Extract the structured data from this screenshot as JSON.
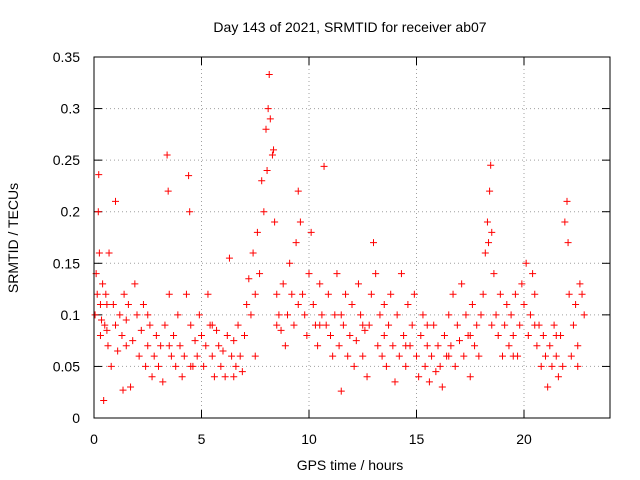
{
  "chart_data": {
    "type": "scatter",
    "title": "Day 143 of 2021, SRMTID for receiver ab07",
    "xlabel": "GPS time / hours",
    "ylabel": "SRMTID / TECUs",
    "xlim": [
      0,
      24
    ],
    "ylim": [
      0,
      0.35
    ],
    "xticks": [
      0,
      5,
      10,
      15,
      20
    ],
    "xtick_labels": [
      "0",
      "5",
      "10",
      "15",
      "20"
    ],
    "yticks": [
      0,
      0.05,
      0.1,
      0.15,
      0.2,
      0.25,
      0.3,
      0.35
    ],
    "ytick_labels": [
      "0",
      "0.05",
      "0.1",
      "0.15",
      "0.2",
      "0.25",
      "0.3",
      "0.35"
    ],
    "grid": true,
    "marker": "+",
    "series_color": "#ff0000",
    "series": [
      {
        "name": "SRMTID",
        "points": [
          [
            0.05,
            0.1
          ],
          [
            0.1,
            0.14
          ],
          [
            0.15,
            0.12
          ],
          [
            0.2,
            0.2
          ],
          [
            0.22,
            0.236
          ],
          [
            0.25,
            0.16
          ],
          [
            0.3,
            0.11
          ],
          [
            0.35,
            0.095
          ],
          [
            0.4,
            0.13
          ],
          [
            0.45,
            0.017
          ],
          [
            0.5,
            0.09
          ],
          [
            0.55,
            0.12
          ],
          [
            0.6,
            0.085
          ],
          [
            0.65,
            0.07
          ],
          [
            0.7,
            0.16
          ],
          [
            0.8,
            0.05
          ],
          [
            0.9,
            0.11
          ],
          [
            1.0,
            0.09
          ],
          [
            1.0,
            0.21
          ],
          [
            1.1,
            0.065
          ],
          [
            1.2,
            0.1
          ],
          [
            1.3,
            0.08
          ],
          [
            1.35,
            0.027
          ],
          [
            1.4,
            0.12
          ],
          [
            1.5,
            0.095
          ],
          [
            1.6,
            0.11
          ],
          [
            1.7,
            0.03
          ],
          [
            1.8,
            0.075
          ],
          [
            1.9,
            0.13
          ],
          [
            2.0,
            0.1
          ],
          [
            2.1,
            0.06
          ],
          [
            2.2,
            0.085
          ],
          [
            2.3,
            0.11
          ],
          [
            2.4,
            0.05
          ],
          [
            2.5,
            0.07
          ],
          [
            2.6,
            0.09
          ],
          [
            2.7,
            0.04
          ],
          [
            2.8,
            0.06
          ],
          [
            2.9,
            0.08
          ],
          [
            3.0,
            0.05
          ],
          [
            3.1,
            0.07
          ],
          [
            3.2,
            0.035
          ],
          [
            3.3,
            0.09
          ],
          [
            3.4,
            0.255
          ],
          [
            3.45,
            0.22
          ],
          [
            3.5,
            0.12
          ],
          [
            3.6,
            0.06
          ],
          [
            3.7,
            0.08
          ],
          [
            3.8,
            0.05
          ],
          [
            3.9,
            0.1
          ],
          [
            4.0,
            0.07
          ],
          [
            4.1,
            0.04
          ],
          [
            4.2,
            0.06
          ],
          [
            4.3,
            0.12
          ],
          [
            4.4,
            0.235
          ],
          [
            4.45,
            0.2
          ],
          [
            4.5,
            0.09
          ],
          [
            4.6,
            0.05
          ],
          [
            4.7,
            0.075
          ],
          [
            4.8,
            0.06
          ],
          [
            4.9,
            0.1
          ],
          [
            5.0,
            0.08
          ],
          [
            5.1,
            0.05
          ],
          [
            5.2,
            0.07
          ],
          [
            5.3,
            0.12
          ],
          [
            5.4,
            0.09
          ],
          [
            5.5,
            0.06
          ],
          [
            5.6,
            0.04
          ],
          [
            5.7,
            0.085
          ],
          [
            5.8,
            0.07
          ],
          [
            5.9,
            0.05
          ],
          [
            6.0,
            0.065
          ],
          [
            6.1,
            0.04
          ],
          [
            6.2,
            0.08
          ],
          [
            6.3,
            0.155
          ],
          [
            6.4,
            0.06
          ],
          [
            6.5,
            0.075
          ],
          [
            6.6,
            0.05
          ],
          [
            6.7,
            0.09
          ],
          [
            6.8,
            0.06
          ],
          [
            6.9,
            0.045
          ],
          [
            7.0,
            0.08
          ],
          [
            7.1,
            0.11
          ],
          [
            7.2,
            0.135
          ],
          [
            7.3,
            0.1
          ],
          [
            7.4,
            0.16
          ],
          [
            7.5,
            0.12
          ],
          [
            7.6,
            0.18
          ],
          [
            7.7,
            0.14
          ],
          [
            7.8,
            0.23
          ],
          [
            7.9,
            0.2
          ],
          [
            8.0,
            0.28
          ],
          [
            8.05,
            0.24
          ],
          [
            8.1,
            0.3
          ],
          [
            8.15,
            0.333
          ],
          [
            8.2,
            0.29
          ],
          [
            8.3,
            0.255
          ],
          [
            8.35,
            0.26
          ],
          [
            8.4,
            0.19
          ],
          [
            8.5,
            0.12
          ],
          [
            8.6,
            0.1
          ],
          [
            8.7,
            0.085
          ],
          [
            8.8,
            0.13
          ],
          [
            8.9,
            0.07
          ],
          [
            9.0,
            0.1
          ],
          [
            9.1,
            0.15
          ],
          [
            9.2,
            0.12
          ],
          [
            9.3,
            0.09
          ],
          [
            9.4,
            0.17
          ],
          [
            9.5,
            0.22
          ],
          [
            9.6,
            0.19
          ],
          [
            9.7,
            0.12
          ],
          [
            9.8,
            0.1
          ],
          [
            9.9,
            0.08
          ],
          [
            10.0,
            0.14
          ],
          [
            10.1,
            0.18
          ],
          [
            10.2,
            0.11
          ],
          [
            10.3,
            0.09
          ],
          [
            10.4,
            0.07
          ],
          [
            10.5,
            0.13
          ],
          [
            10.6,
            0.1
          ],
          [
            10.7,
            0.244
          ],
          [
            10.8,
            0.09
          ],
          [
            10.9,
            0.12
          ],
          [
            11.0,
            0.08
          ],
          [
            11.1,
            0.06
          ],
          [
            11.2,
            0.1
          ],
          [
            11.3,
            0.14
          ],
          [
            11.4,
            0.07
          ],
          [
            11.5,
            0.026
          ],
          [
            11.6,
            0.09
          ],
          [
            11.7,
            0.12
          ],
          [
            11.8,
            0.06
          ],
          [
            11.9,
            0.08
          ],
          [
            12.0,
            0.11
          ],
          [
            12.1,
            0.05
          ],
          [
            12.2,
            0.075
          ],
          [
            12.3,
            0.13
          ],
          [
            12.4,
            0.1
          ],
          [
            12.5,
            0.06
          ],
          [
            12.6,
            0.085
          ],
          [
            12.7,
            0.04
          ],
          [
            12.8,
            0.09
          ],
          [
            12.9,
            0.12
          ],
          [
            13.0,
            0.17
          ],
          [
            13.1,
            0.14
          ],
          [
            13.2,
            0.07
          ],
          [
            13.3,
            0.1
          ],
          [
            13.4,
            0.06
          ],
          [
            13.5,
            0.08
          ],
          [
            13.6,
            0.05
          ],
          [
            13.7,
            0.09
          ],
          [
            13.8,
            0.12
          ],
          [
            13.9,
            0.07
          ],
          [
            14.0,
            0.035
          ],
          [
            14.1,
            0.1
          ],
          [
            14.2,
            0.06
          ],
          [
            14.3,
            0.14
          ],
          [
            14.4,
            0.08
          ],
          [
            14.5,
            0.05
          ],
          [
            14.6,
            0.11
          ],
          [
            14.7,
            0.07
          ],
          [
            14.8,
            0.09
          ],
          [
            14.9,
            0.12
          ],
          [
            15.0,
            0.06
          ],
          [
            15.1,
            0.04
          ],
          [
            15.2,
            0.08
          ],
          [
            15.3,
            0.1
          ],
          [
            15.4,
            0.05
          ],
          [
            15.5,
            0.07
          ],
          [
            15.6,
            0.035
          ],
          [
            15.7,
            0.06
          ],
          [
            15.8,
            0.09
          ],
          [
            15.9,
            0.045
          ],
          [
            16.0,
            0.07
          ],
          [
            16.1,
            0.05
          ],
          [
            16.2,
            0.03
          ],
          [
            16.3,
            0.08
          ],
          [
            16.4,
            0.06
          ],
          [
            16.5,
            0.1
          ],
          [
            16.6,
            0.07
          ],
          [
            16.7,
            0.12
          ],
          [
            16.8,
            0.05
          ],
          [
            16.9,
            0.09
          ],
          [
            17.0,
            0.075
          ],
          [
            17.1,
            0.13
          ],
          [
            17.2,
            0.06
          ],
          [
            17.3,
            0.1
          ],
          [
            17.4,
            0.08
          ],
          [
            17.5,
            0.04
          ],
          [
            17.6,
            0.11
          ],
          [
            17.7,
            0.07
          ],
          [
            17.8,
            0.09
          ],
          [
            17.9,
            0.06
          ],
          [
            18.0,
            0.1
          ],
          [
            18.1,
            0.12
          ],
          [
            18.2,
            0.16
          ],
          [
            18.3,
            0.19
          ],
          [
            18.35,
            0.17
          ],
          [
            18.4,
            0.22
          ],
          [
            18.45,
            0.245
          ],
          [
            18.5,
            0.18
          ],
          [
            18.6,
            0.14
          ],
          [
            18.7,
            0.1
          ],
          [
            18.8,
            0.08
          ],
          [
            18.9,
            0.12
          ],
          [
            19.0,
            0.06
          ],
          [
            19.1,
            0.09
          ],
          [
            19.2,
            0.11
          ],
          [
            19.3,
            0.07
          ],
          [
            19.4,
            0.1
          ],
          [
            19.5,
            0.08
          ],
          [
            19.6,
            0.12
          ],
          [
            19.7,
            0.06
          ],
          [
            19.8,
            0.09
          ],
          [
            19.9,
            0.13
          ],
          [
            20.0,
            0.11
          ],
          [
            20.1,
            0.15
          ],
          [
            20.2,
            0.08
          ],
          [
            20.3,
            0.1
          ],
          [
            20.4,
            0.14
          ],
          [
            20.5,
            0.12
          ],
          [
            20.6,
            0.07
          ],
          [
            20.7,
            0.09
          ],
          [
            20.8,
            0.05
          ],
          [
            20.9,
            0.08
          ],
          [
            21.0,
            0.06
          ],
          [
            21.1,
            0.03
          ],
          [
            21.2,
            0.07
          ],
          [
            21.3,
            0.05
          ],
          [
            21.4,
            0.09
          ],
          [
            21.5,
            0.06
          ],
          [
            21.6,
            0.04
          ],
          [
            21.7,
            0.08
          ],
          [
            21.8,
            0.05
          ],
          [
            21.9,
            0.19
          ],
          [
            22.0,
            0.21
          ],
          [
            22.05,
            0.17
          ],
          [
            22.1,
            0.12
          ],
          [
            22.2,
            0.06
          ],
          [
            22.3,
            0.09
          ],
          [
            22.4,
            0.11
          ],
          [
            22.5,
            0.07
          ],
          [
            22.6,
            0.13
          ],
          [
            22.7,
            0.12
          ],
          [
            22.8,
            0.1
          ],
          [
            0.3,
            0.08
          ],
          [
            0.6,
            0.11
          ],
          [
            1.5,
            0.07
          ],
          [
            2.5,
            0.1
          ],
          [
            3.5,
            0.07
          ],
          [
            4.5,
            0.05
          ],
          [
            5.5,
            0.09
          ],
          [
            6.5,
            0.04
          ],
          [
            7.5,
            0.06
          ],
          [
            8.5,
            0.09
          ],
          [
            9.5,
            0.11
          ],
          [
            10.5,
            0.09
          ],
          [
            11.5,
            0.1
          ],
          [
            12.5,
            0.09
          ],
          [
            13.5,
            0.11
          ],
          [
            14.5,
            0.07
          ],
          [
            15.5,
            0.09
          ],
          [
            16.5,
            0.06
          ],
          [
            17.5,
            0.08
          ],
          [
            18.5,
            0.09
          ],
          [
            19.5,
            0.06
          ],
          [
            20.5,
            0.09
          ],
          [
            21.5,
            0.08
          ],
          [
            22.5,
            0.05
          ]
        ]
      }
    ]
  }
}
